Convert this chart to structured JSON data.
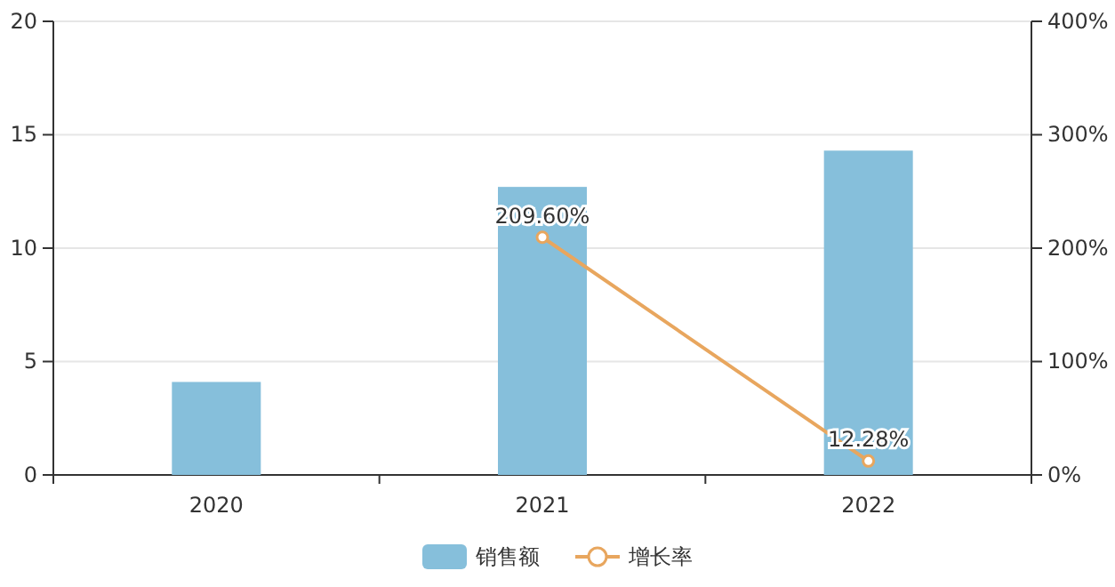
{
  "chart_data": {
    "type": "bar",
    "categories": [
      "2020",
      "2021",
      "2022"
    ],
    "series": [
      {
        "name": "销售额",
        "color": "#86bfdb",
        "values": [
          4.1,
          12.7,
          14.3
        ]
      },
      {
        "name": "增长率",
        "type": "line",
        "axis": "y2",
        "color": "#e8a65e",
        "values": [
          null,
          209.6,
          12.28
        ],
        "value_labels": [
          null,
          "209.60%",
          "12.28%"
        ]
      }
    ],
    "ylim": [
      0,
      20
    ],
    "yticks": [
      0,
      5,
      10,
      15,
      20
    ],
    "y2lim": [
      0,
      400
    ],
    "y2ticks": [
      {
        "value": 0,
        "label": "0%"
      },
      {
        "value": 100,
        "label": "100%"
      },
      {
        "value": 200,
        "label": "200%"
      },
      {
        "value": 300,
        "label": "300%"
      },
      {
        "value": 400,
        "label": "400%"
      }
    ],
    "grid": "y",
    "legend": "bottom",
    "marker": "circle"
  }
}
